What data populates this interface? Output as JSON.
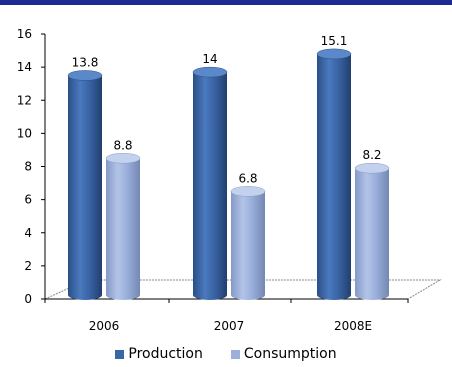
{
  "chart_data": {
    "type": "bar",
    "categories": [
      "2006",
      "2007",
      "2008E"
    ],
    "series": [
      {
        "name": "Production",
        "values": [
          13.8,
          14,
          15.1
        ],
        "labels": [
          "13.8",
          "14",
          "15.1"
        ],
        "color": "#3a66a7"
      },
      {
        "name": "Consumption",
        "values": [
          8.8,
          6.8,
          8.2
        ],
        "labels": [
          "8.8",
          "6.8",
          "8.2"
        ],
        "color": "#9bb0dc"
      }
    ],
    "ylim": [
      0,
      16
    ],
    "yticks": [
      0,
      2,
      4,
      6,
      8,
      10,
      12,
      14,
      16
    ],
    "legend_position": "bottom",
    "style": "3d-cylinder"
  }
}
